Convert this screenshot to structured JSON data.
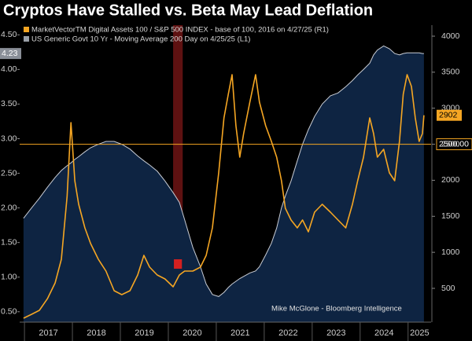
{
  "chart_data": {
    "type": "line",
    "title": "Cryptos Have Stalled vs. Beta May Lead Deflation",
    "annotation": "Mike McGlone - Bloomberg Intelligence",
    "x": [
      2016.98,
      2017.15,
      2017.31,
      2017.48,
      2017.64,
      2017.77,
      2017.89,
      2017.97,
      2018.05,
      2018.13,
      2018.26,
      2018.38,
      2018.54,
      2018.7,
      2018.87,
      2019.03,
      2019.2,
      2019.36,
      2019.49,
      2019.61,
      2019.77,
      2019.93,
      2020.1,
      2020.23,
      2020.34,
      2020.51,
      2020.67,
      2020.79,
      2020.92,
      2021.05,
      2021.16,
      2021.25,
      2021.33,
      2021.41,
      2021.49,
      2021.57,
      2021.7,
      2021.82,
      2021.9,
      2022.03,
      2022.15,
      2022.26,
      2022.36,
      2022.44,
      2022.56,
      2022.69,
      2022.8,
      2022.92,
      2023.05,
      2023.21,
      2023.38,
      2023.54,
      2023.7,
      2023.84,
      2023.95,
      2024.07,
      2024.2,
      2024.28,
      2024.36,
      2024.49,
      2024.61,
      2024.72,
      2024.82,
      2024.9,
      2024.98,
      2025.07,
      2025.15,
      2025.23,
      2025.3,
      2025.33
    ],
    "series": [
      {
        "name": "MarketVectorTM Digital Assets 100 / S&P 500 INDEX - base of 100, 2016 on 4/27/25 (R1)",
        "color": "#f5a623",
        "axis": "y2",
        "values": [
          86,
          140,
          195,
          358,
          576,
          903,
          1776,
          2800,
          1994,
          1667,
          1340,
          1122,
          903,
          740,
          467,
          413,
          467,
          685,
          958,
          794,
          685,
          631,
          522,
          685,
          740,
          740,
          794,
          958,
          1340,
          2103,
          2866,
          3193,
          3466,
          2757,
          2321,
          2648,
          3084,
          3466,
          3084,
          2757,
          2539,
          2321,
          1994,
          1612,
          1449,
          1340,
          1449,
          1285,
          1558,
          1667,
          1558,
          1449,
          1340,
          1667,
          1994,
          2321,
          2866,
          2648,
          2321,
          2430,
          2103,
          1994,
          2539,
          3193,
          3466,
          3302,
          2866,
          2539,
          2648,
          2902
        ]
      },
      {
        "name": "US Generic Govt 10 Yr - Moving Average 200 Day on 4/25/25 (L1)",
        "color": "#c8ccd4",
        "fill": "#0e2442",
        "axis": "y",
        "style": "area",
        "values": [
          1.85,
          2.0,
          2.14,
          2.3,
          2.44,
          2.54,
          2.61,
          2.65,
          2.7,
          2.74,
          2.81,
          2.87,
          2.92,
          2.96,
          2.96,
          2.92,
          2.85,
          2.75,
          2.68,
          2.62,
          2.53,
          2.39,
          2.22,
          2.08,
          1.83,
          1.43,
          1.15,
          0.9,
          0.75,
          0.72,
          0.78,
          0.85,
          0.9,
          0.94,
          0.98,
          1.01,
          1.06,
          1.09,
          1.15,
          1.32,
          1.49,
          1.71,
          2.0,
          2.17,
          2.39,
          2.68,
          2.92,
          3.13,
          3.32,
          3.5,
          3.62,
          3.66,
          3.75,
          3.84,
          3.92,
          4.0,
          4.09,
          4.21,
          4.28,
          4.34,
          4.3,
          4.23,
          4.21,
          4.23,
          4.24,
          4.24,
          4.24,
          4.24,
          4.23,
          4.23
        ]
      }
    ],
    "xlim": [
      2016.9,
      2025.48
    ],
    "xticks": [
      2017,
      2018,
      2019,
      2020,
      2021,
      2022,
      2023,
      2024,
      2025
    ],
    "ylim": [
      0.35,
      4.64
    ],
    "yticks": [
      {
        "value": 0.5,
        "label": "0.50"
      },
      {
        "value": 1,
        "label": "1.00"
      },
      {
        "value": 1.5,
        "label": "1.50"
      },
      {
        "value": 2,
        "label": "2.00"
      },
      {
        "value": 2.5,
        "label": "2.50"
      },
      {
        "value": 3,
        "label": "3.00"
      },
      {
        "value": 3.5,
        "label": "3.50"
      },
      {
        "value": 4,
        "label": "4.00"
      },
      {
        "value": 4.5,
        "label": "4.50"
      }
    ],
    "y2lim": [
      31,
      4153
    ],
    "y2ticks": [
      500,
      1000,
      1500,
      2000,
      2500,
      3000,
      3500,
      4000
    ],
    "hline": {
      "value": 2500,
      "label": "2500.00",
      "axis": "y2",
      "color": "#f5a623"
    },
    "highlight": {
      "x0": 2020.1,
      "x1": 2020.3,
      "color": "#6e1414"
    }
  }
}
